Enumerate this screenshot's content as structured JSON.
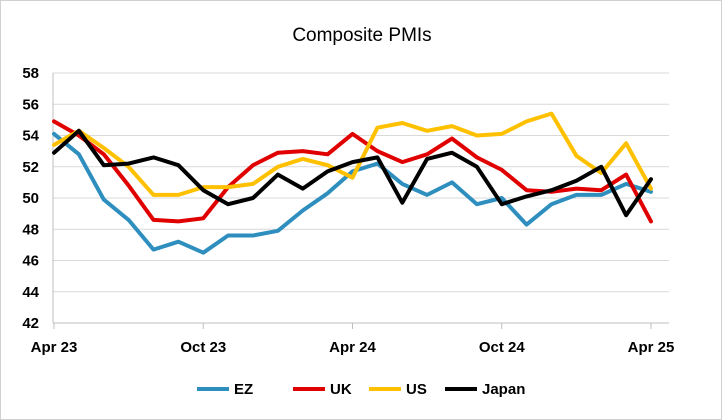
{
  "chart_data": {
    "type": "line",
    "title": "Composite PMIs",
    "xlabel": "",
    "ylabel": "",
    "ylim": [
      42,
      58
    ],
    "yticks": [
      42,
      44,
      46,
      48,
      50,
      52,
      54,
      56,
      58
    ],
    "x": [
      "Apr 23",
      "May 23",
      "Jun 23",
      "Jul 23",
      "Aug 23",
      "Sep 23",
      "Oct 23",
      "Nov 23",
      "Dec 23",
      "Jan 24",
      "Feb 24",
      "Mar 24",
      "Apr 24",
      "May 24",
      "Jun 24",
      "Jul 24",
      "Aug 24",
      "Sep 24",
      "Oct 24",
      "Nov 24",
      "Dec 24",
      "Jan 25",
      "Feb 25",
      "Mar 25",
      "Apr 25"
    ],
    "xtick_labels": [
      "Apr 23",
      "Oct 23",
      "Apr 24",
      "Oct 24",
      "Apr 25"
    ],
    "xtick_index": [
      0,
      6,
      12,
      18,
      24
    ],
    "grid": "horizontal",
    "legend_position": "bottom",
    "series": [
      {
        "name": "EZ",
        "color": "#2E8FBF",
        "values": [
          54.1,
          52.8,
          49.9,
          48.6,
          46.7,
          47.2,
          46.5,
          47.6,
          47.6,
          47.9,
          49.2,
          50.3,
          51.7,
          52.2,
          50.9,
          50.2,
          51.0,
          49.6,
          50.0,
          48.3,
          49.6,
          50.2,
          50.2,
          50.9,
          50.4
        ]
      },
      {
        "name": "UK",
        "color": "#E00000",
        "values": [
          54.9,
          54.0,
          52.8,
          50.8,
          48.6,
          48.5,
          48.7,
          50.7,
          52.1,
          52.9,
          53.0,
          52.8,
          54.1,
          53.0,
          52.3,
          52.8,
          53.8,
          52.6,
          51.8,
          50.5,
          50.4,
          50.6,
          50.5,
          51.5,
          48.5
        ]
      },
      {
        "name": "US",
        "color": "#FFC000",
        "values": [
          53.4,
          54.3,
          53.2,
          52.0,
          50.2,
          50.2,
          50.7,
          50.7,
          50.9,
          52.0,
          52.5,
          52.1,
          51.3,
          54.5,
          54.8,
          54.3,
          54.6,
          54.0,
          54.1,
          54.9,
          55.4,
          52.7,
          51.6,
          53.5,
          50.6
        ]
      },
      {
        "name": "Japan",
        "color": "#000000",
        "values": [
          52.9,
          54.3,
          52.1,
          52.2,
          52.6,
          52.1,
          50.5,
          49.6,
          50.0,
          51.5,
          50.6,
          51.7,
          52.3,
          52.6,
          49.7,
          52.5,
          52.9,
          52.0,
          49.6,
          50.1,
          50.5,
          51.1,
          52.0,
          48.9,
          51.2
        ]
      }
    ]
  }
}
